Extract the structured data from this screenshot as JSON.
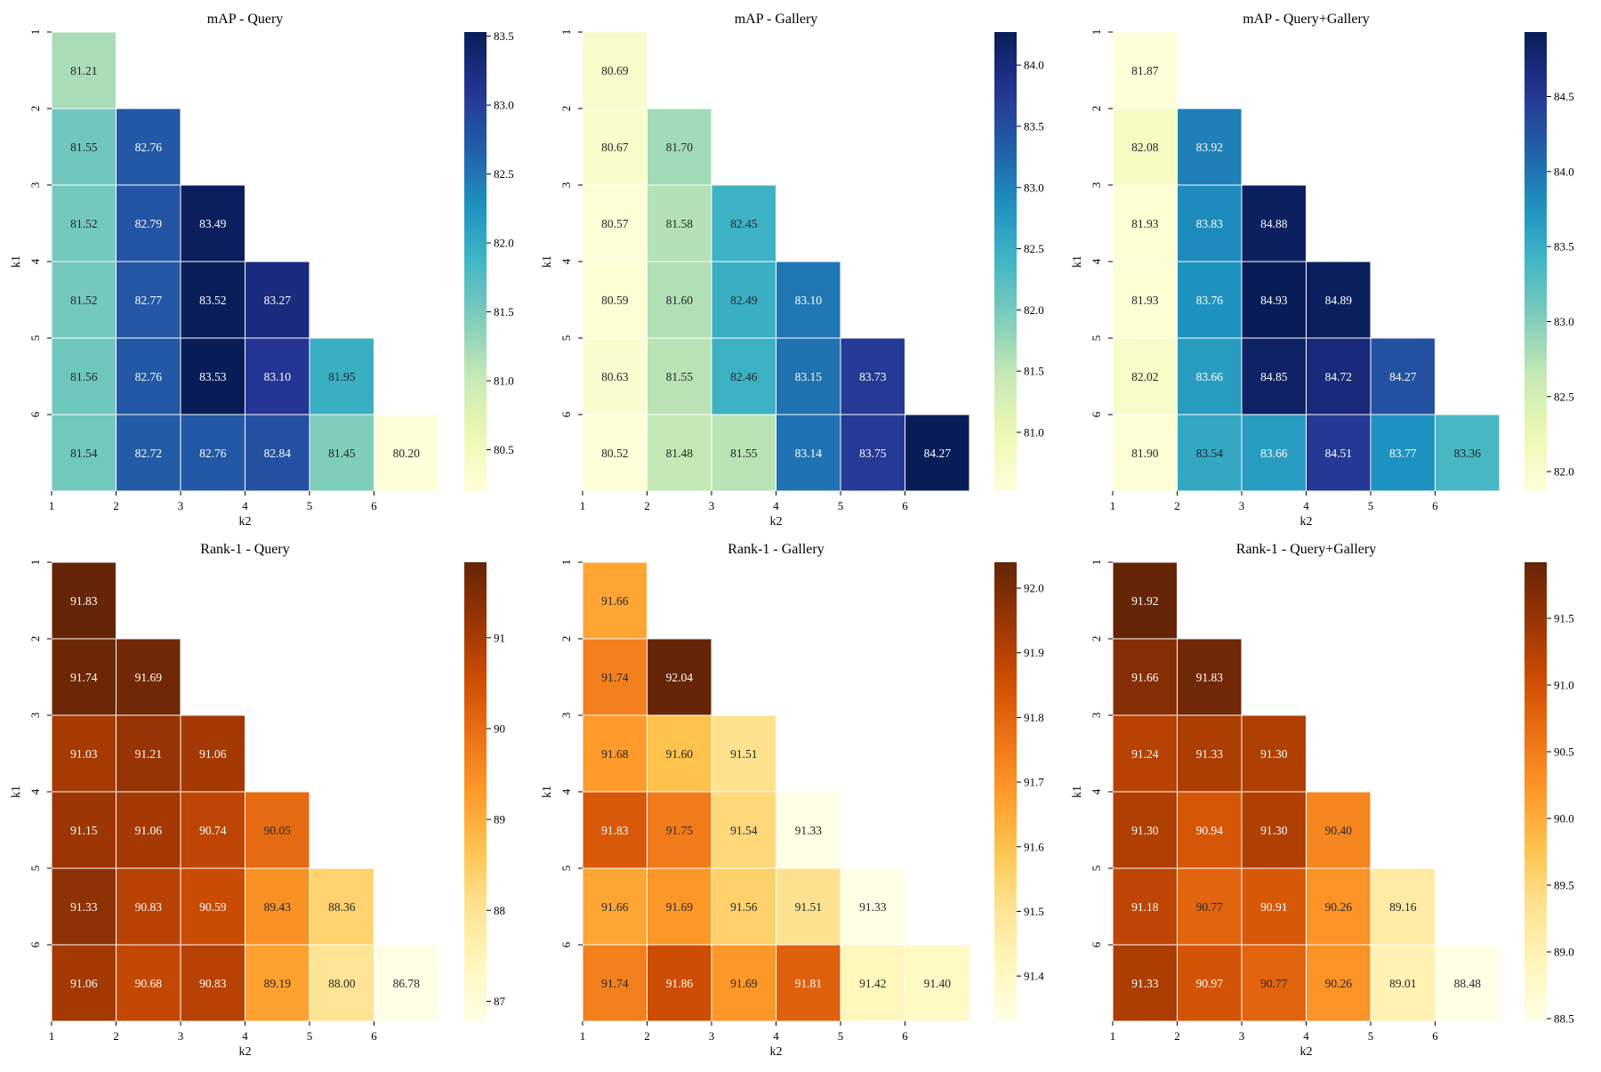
{
  "figure": {
    "x_row_labels": [
      "1",
      "2",
      "3",
      "4",
      "5",
      "6"
    ],
    "y_row_labels": [
      "1",
      "2",
      "3",
      "4",
      "5",
      "6"
    ]
  },
  "chart_data": [
    {
      "type": "heatmap",
      "title": "mAP - Query",
      "xlabel": "k2",
      "ylabel": "k1",
      "colormap": "YlGnBu",
      "vmin": 80.2,
      "vmax": 83.53,
      "colorbar_ticks": [
        "80.5",
        "81.0",
        "81.5",
        "82.0",
        "82.5",
        "83.0",
        "83.5"
      ],
      "colorbar_tick_values": [
        80.5,
        81.0,
        81.5,
        82.0,
        82.5,
        83.0,
        83.5
      ],
      "rows": [
        [
          81.21
        ],
        [
          81.55,
          82.76
        ],
        [
          81.52,
          82.79,
          83.49
        ],
        [
          81.52,
          82.77,
          83.52,
          83.27
        ],
        [
          81.56,
          82.76,
          83.53,
          83.1,
          81.95
        ],
        [
          81.54,
          82.72,
          82.76,
          82.84,
          81.45,
          80.2
        ]
      ],
      "labels": [
        [
          "81.21"
        ],
        [
          "81.55",
          "82.76"
        ],
        [
          "81.52",
          "82.79",
          "83.49"
        ],
        [
          "81.52",
          "82.77",
          "83.52",
          "83.27"
        ],
        [
          "81.56",
          "82.76",
          "83.53",
          "83.10",
          "81.95"
        ],
        [
          "81.54",
          "82.72",
          "82.76",
          "82.84",
          "81.45",
          "80.20"
        ]
      ]
    },
    {
      "type": "heatmap",
      "title": "mAP - Gallery",
      "xlabel": "k2",
      "ylabel": "k1",
      "colormap": "YlGnBu",
      "vmin": 80.52,
      "vmax": 84.27,
      "colorbar_ticks": [
        "81.0",
        "81.5",
        "82.0",
        "82.5",
        "83.0",
        "83.5",
        "84.0"
      ],
      "colorbar_tick_values": [
        81.0,
        81.5,
        82.0,
        82.5,
        83.0,
        83.5,
        84.0
      ],
      "rows": [
        [
          80.69
        ],
        [
          80.67,
          81.7
        ],
        [
          80.57,
          81.58,
          82.45
        ],
        [
          80.59,
          81.6,
          82.49,
          83.1
        ],
        [
          80.63,
          81.55,
          82.46,
          83.15,
          83.73
        ],
        [
          80.52,
          81.48,
          81.55,
          83.14,
          83.75,
          84.27
        ]
      ],
      "labels": [
        [
          "80.69"
        ],
        [
          "80.67",
          "81.70"
        ],
        [
          "80.57",
          "81.58",
          "82.45"
        ],
        [
          "80.59",
          "81.60",
          "82.49",
          "83.10"
        ],
        [
          "80.63",
          "81.55",
          "82.46",
          "83.15",
          "83.73"
        ],
        [
          "80.52",
          "81.48",
          "81.55",
          "83.14",
          "83.75",
          "84.27"
        ]
      ]
    },
    {
      "type": "heatmap",
      "title": "mAP - Query+Gallery",
      "xlabel": "k2",
      "ylabel": "k1",
      "colormap": "YlGnBu",
      "vmin": 81.87,
      "vmax": 84.93,
      "colorbar_ticks": [
        "82.0",
        "82.5",
        "83.0",
        "83.5",
        "84.0",
        "84.5"
      ],
      "colorbar_tick_values": [
        82.0,
        82.5,
        83.0,
        83.5,
        84.0,
        84.5
      ],
      "rows": [
        [
          81.87
        ],
        [
          82.08,
          83.92
        ],
        [
          81.93,
          83.83,
          84.88
        ],
        [
          81.93,
          83.76,
          84.93,
          84.89
        ],
        [
          82.02,
          83.66,
          84.85,
          84.72,
          84.27
        ],
        [
          81.9,
          83.54,
          83.66,
          84.51,
          83.77,
          83.36
        ]
      ],
      "labels": [
        [
          "81.87"
        ],
        [
          "82.08",
          "83.92"
        ],
        [
          "81.93",
          "83.83",
          "84.88"
        ],
        [
          "81.93",
          "83.76",
          "84.93",
          "84.89"
        ],
        [
          "82.02",
          "83.66",
          "84.85",
          "84.72",
          "84.27"
        ],
        [
          "81.90",
          "83.54",
          "83.66",
          "84.51",
          "83.77",
          "83.36"
        ]
      ]
    },
    {
      "type": "heatmap",
      "title": "Rank-1 - Query",
      "xlabel": "k2",
      "ylabel": "k1",
      "colormap": "YlOrBr",
      "vmin": 86.78,
      "vmax": 91.83,
      "colorbar_ticks": [
        "87",
        "88",
        "89",
        "90",
        "91"
      ],
      "colorbar_tick_values": [
        87,
        88,
        89,
        90,
        91
      ],
      "rows": [
        [
          91.83
        ],
        [
          91.74,
          91.69
        ],
        [
          91.03,
          91.21,
          91.06
        ],
        [
          91.15,
          91.06,
          90.74,
          90.05
        ],
        [
          91.33,
          90.83,
          90.59,
          89.43,
          88.36
        ],
        [
          91.06,
          90.68,
          90.83,
          89.19,
          88.0,
          86.78
        ]
      ],
      "labels": [
        [
          "91.83"
        ],
        [
          "91.74",
          "91.69"
        ],
        [
          "91.03",
          "91.21",
          "91.06"
        ],
        [
          "91.15",
          "91.06",
          "90.74",
          "90.05"
        ],
        [
          "91.33",
          "90.83",
          "90.59",
          "89.43",
          "88.36"
        ],
        [
          "91.06",
          "90.68",
          "90.83",
          "89.19",
          "88.00",
          "86.78"
        ]
      ]
    },
    {
      "type": "heatmap",
      "title": "Rank-1 - Gallery",
      "xlabel": "k2",
      "ylabel": "k1",
      "colormap": "YlOrBr",
      "vmin": 91.33,
      "vmax": 92.04,
      "colorbar_ticks": [
        "91.4",
        "91.5",
        "91.6",
        "91.7",
        "91.8",
        "91.9",
        "92.0"
      ],
      "colorbar_tick_values": [
        91.4,
        91.5,
        91.6,
        91.7,
        91.8,
        91.9,
        92.0
      ],
      "rows": [
        [
          91.66
        ],
        [
          91.74,
          92.04
        ],
        [
          91.68,
          91.6,
          91.51
        ],
        [
          91.83,
          91.75,
          91.54,
          91.33
        ],
        [
          91.66,
          91.69,
          91.56,
          91.51,
          91.33
        ],
        [
          91.74,
          91.86,
          91.69,
          91.81,
          91.42,
          91.4
        ]
      ],
      "labels": [
        [
          "91.66"
        ],
        [
          "91.74",
          "92.04"
        ],
        [
          "91.68",
          "91.60",
          "91.51"
        ],
        [
          "91.83",
          "91.75",
          "91.54",
          "91.33"
        ],
        [
          "91.66",
          "91.69",
          "91.56",
          "91.51",
          "91.33"
        ],
        [
          "91.74",
          "91.86",
          "91.69",
          "91.81",
          "91.42",
          "91.40"
        ]
      ]
    },
    {
      "type": "heatmap",
      "title": "Rank-1 - Query+Gallery",
      "xlabel": "k2",
      "ylabel": "k1",
      "colormap": "YlOrBr",
      "vmin": 88.48,
      "vmax": 91.92,
      "colorbar_ticks": [
        "88.5",
        "89.0",
        "89.5",
        "90.0",
        "90.5",
        "91.0",
        "91.5"
      ],
      "colorbar_tick_values": [
        88.5,
        89.0,
        89.5,
        90.0,
        90.5,
        91.0,
        91.5
      ],
      "rows": [
        [
          91.92
        ],
        [
          91.66,
          91.83
        ],
        [
          91.24,
          91.33,
          91.3
        ],
        [
          91.3,
          90.94,
          91.3,
          90.4
        ],
        [
          91.18,
          90.77,
          90.91,
          90.26,
          89.16
        ],
        [
          91.33,
          90.97,
          90.77,
          90.26,
          89.01,
          88.48
        ]
      ],
      "labels": [
        [
          "91.92"
        ],
        [
          "91.66",
          "91.83"
        ],
        [
          "91.24",
          "91.33",
          "91.30"
        ],
        [
          "91.30",
          "90.94",
          "91.30",
          "90.40"
        ],
        [
          "91.18",
          "90.77",
          "90.91",
          "90.26",
          "89.16"
        ],
        [
          "91.33",
          "90.97",
          "90.77",
          "90.26",
          "89.01",
          "88.48"
        ]
      ]
    }
  ]
}
